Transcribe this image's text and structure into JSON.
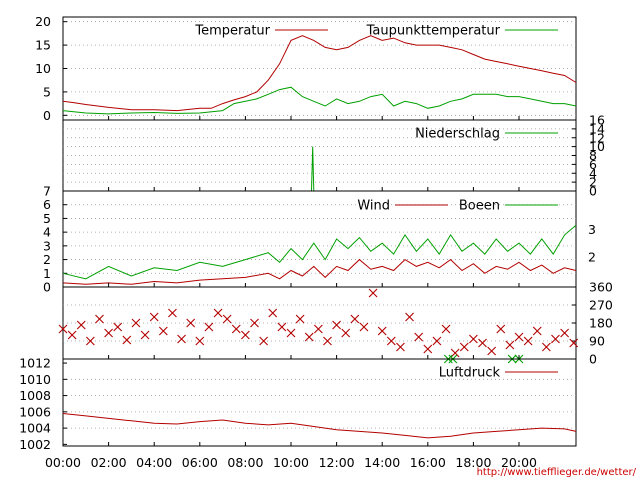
{
  "colors": {
    "red": "#b30000",
    "green": "#00a000",
    "grid": "#999999"
  },
  "time_axis": {
    "ticks": [
      "00:00",
      "02:00",
      "04:00",
      "06:00",
      "08:00",
      "10:00",
      "12:00",
      "14:00",
      "16:00",
      "18:00",
      "20:00"
    ],
    "range_hours": [
      0,
      22.5
    ]
  },
  "credit": "http://www.tiefflieger.de/wetter/",
  "chart_data": [
    {
      "type": "line",
      "yticks": [
        0,
        5,
        10,
        15,
        20
      ],
      "ylim": [
        -1,
        21
      ],
      "series": [
        {
          "name": "Temperatur",
          "color": "red",
          "x": [
            0,
            0.5,
            1,
            2,
            3,
            4,
            5,
            6,
            6.5,
            7,
            7.5,
            8,
            8.5,
            9,
            9.5,
            10,
            10.5,
            11,
            11.5,
            12,
            12.5,
            13,
            13.5,
            14,
            14.5,
            15,
            15.5,
            16,
            16.5,
            17,
            17.5,
            18,
            18.5,
            19,
            19.5,
            20,
            20.5,
            21,
            21.5,
            22,
            22.5
          ],
          "y": [
            3,
            2.7,
            2.3,
            1.7,
            1.2,
            1.2,
            1,
            1.5,
            1.5,
            2.5,
            3.3,
            4,
            5,
            7.5,
            11,
            16,
            17,
            16,
            14.5,
            14,
            14.5,
            16,
            17,
            16,
            16.5,
            15.5,
            15,
            15,
            15,
            14.5,
            14,
            13,
            12,
            11.5,
            11,
            10.5,
            10,
            9.5,
            9,
            8.5,
            7
          ]
        },
        {
          "name": "Taupunkttemperatur",
          "color": "green",
          "x": [
            0,
            1,
            2,
            3,
            4,
            5,
            6,
            7,
            7.5,
            8,
            8.5,
            9,
            9.5,
            10,
            10.5,
            11,
            11.5,
            12,
            12.5,
            13,
            13.5,
            14,
            14.5,
            15,
            15.5,
            16,
            16.5,
            17,
            17.5,
            18,
            18.5,
            19,
            19.5,
            20,
            20.5,
            21,
            21.5,
            22,
            22.5
          ],
          "y": [
            1,
            0.5,
            0.3,
            0.5,
            0.6,
            0.4,
            0.5,
            1,
            2.5,
            3,
            3.5,
            4.5,
            5.5,
            6,
            4,
            3,
            2,
            3.5,
            2.5,
            3,
            4,
            4.5,
            2,
            3,
            2.5,
            1.5,
            2,
            3,
            3.5,
            4.5,
            4.5,
            4.5,
            4,
            4,
            3.5,
            3,
            2.5,
            2.5,
            2
          ]
        }
      ]
    },
    {
      "type": "line",
      "yticks": [
        0,
        2,
        4,
        6,
        8,
        10,
        12,
        14,
        16
      ],
      "ylim": [
        0,
        16
      ],
      "series": [
        {
          "name": "Niederschlag",
          "color": "green",
          "x": [
            10.9,
            10.95,
            11.0
          ],
          "y": [
            0,
            10,
            0
          ]
        }
      ]
    },
    {
      "type": "line",
      "yticks": [
        0,
        1,
        2,
        3,
        4,
        5,
        6,
        7
      ],
      "ylim": [
        0,
        7
      ],
      "right_labels": [
        "2",
        "3"
      ],
      "series": [
        {
          "name": "Wind",
          "color": "red",
          "x": [
            0,
            1,
            2,
            3,
            4,
            5,
            6,
            7,
            8,
            9,
            9.5,
            10,
            10.5,
            11,
            11.5,
            12,
            12.5,
            13,
            13.5,
            14,
            14.5,
            15,
            15.5,
            16,
            16.5,
            17,
            17.5,
            18,
            18.5,
            19,
            19.5,
            20,
            20.5,
            21,
            21.5,
            22,
            22.5
          ],
          "y": [
            0.3,
            0.2,
            0.3,
            0.2,
            0.4,
            0.3,
            0.5,
            0.6,
            0.7,
            1,
            0.6,
            1.2,
            0.8,
            1.5,
            0.7,
            1.5,
            1.2,
            2,
            1.3,
            1.5,
            1.2,
            2,
            1.5,
            1.8,
            1.4,
            2,
            1.2,
            1.7,
            1,
            1.5,
            1.3,
            1.8,
            1.2,
            1.6,
            1,
            1.4,
            1.2
          ]
        },
        {
          "name": "Boeen",
          "color": "green",
          "x": [
            0,
            1,
            2,
            3,
            4,
            5,
            6,
            7,
            8,
            9,
            9.5,
            10,
            10.5,
            11,
            11.5,
            12,
            12.5,
            13,
            13.5,
            14,
            14.5,
            15,
            15.5,
            16,
            16.5,
            17,
            17.5,
            18,
            18.5,
            19,
            19.5,
            20,
            20.5,
            21,
            21.5,
            22,
            22.5
          ],
          "y": [
            1,
            0.6,
            1.5,
            0.8,
            1.4,
            1.2,
            1.8,
            1.5,
            2,
            2.5,
            1.8,
            2.8,
            2,
            3.2,
            2,
            3.5,
            2.8,
            3.6,
            2.6,
            3.2,
            2.4,
            3.8,
            2.6,
            3.5,
            2.4,
            3.8,
            2.6,
            3.2,
            2.4,
            3.5,
            2.6,
            3.2,
            2.4,
            3.5,
            2.4,
            3.8,
            4.5
          ]
        }
      ]
    },
    {
      "type": "scatter",
      "yticks": [
        0,
        90,
        180,
        270,
        360
      ],
      "ylim": [
        0,
        360
      ],
      "series": [
        {
          "name": "",
          "color": "red",
          "x": [
            0,
            0.4,
            0.8,
            1.2,
            1.6,
            2,
            2.4,
            2.8,
            3.2,
            3.6,
            4,
            4.4,
            4.8,
            5.2,
            5.6,
            6,
            6.4,
            6.8,
            7.2,
            7.6,
            8,
            8.4,
            8.8,
            9.2,
            9.6,
            10,
            10.4,
            10.8,
            11.2,
            11.6,
            12,
            12.4,
            12.8,
            13.2,
            13.6,
            14,
            14.4,
            14.8,
            15.2,
            15.6,
            16,
            16.4,
            16.8,
            17.2,
            17.6,
            18,
            18.4,
            18.8,
            19.2,
            19.6,
            20,
            20.4,
            20.8,
            21.2,
            21.6,
            22,
            22.4
          ],
          "y": [
            150,
            120,
            170,
            90,
            200,
            130,
            160,
            95,
            180,
            120,
            210,
            140,
            230,
            100,
            180,
            90,
            160,
            230,
            200,
            150,
            120,
            180,
            90,
            230,
            160,
            130,
            200,
            110,
            150,
            90,
            170,
            130,
            200,
            160,
            330,
            140,
            90,
            60,
            210,
            110,
            50,
            90,
            150,
            30,
            60,
            100,
            80,
            40,
            150,
            70,
            110,
            90,
            140,
            60,
            100,
            130,
            80
          ]
        },
        {
          "name": "",
          "color": "green",
          "x": [
            16.9,
            17.1,
            19.7,
            20
          ],
          "y": [
            0,
            0,
            0,
            0
          ]
        }
      ]
    },
    {
      "type": "line",
      "yticks": [
        1002,
        1004,
        1006,
        1008,
        1010,
        1012
      ],
      "ylim": [
        1001.8,
        1012.5
      ],
      "series": [
        {
          "name": "Luftdruck",
          "color": "red",
          "x": [
            0,
            1,
            2,
            3,
            4,
            5,
            6,
            7,
            8,
            9,
            10,
            11,
            12,
            13,
            14,
            15,
            16,
            17,
            18,
            19,
            20,
            21,
            22,
            22.5
          ],
          "y": [
            1005.8,
            1005.5,
            1005.2,
            1004.9,
            1004.6,
            1004.5,
            1004.8,
            1005,
            1004.6,
            1004.4,
            1004.6,
            1004.2,
            1003.8,
            1003.6,
            1003.4,
            1003.1,
            1002.8,
            1003,
            1003.4,
            1003.6,
            1003.8,
            1004,
            1003.9,
            1003.6
          ]
        }
      ]
    }
  ]
}
